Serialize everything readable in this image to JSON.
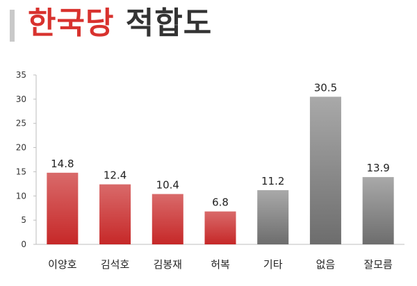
{
  "header": {
    "title_part1": "한국당",
    "title_part2": "적합도",
    "title_color1": "#d8322e",
    "title_color2": "#333333"
  },
  "chart_data": {
    "type": "bar",
    "categories": [
      "이양호",
      "김석호",
      "김봉재",
      "허복",
      "기타",
      "없음",
      "잘모름"
    ],
    "values": [
      14.8,
      12.4,
      10.4,
      6.8,
      11.2,
      30.5,
      13.9
    ],
    "value_labels": [
      "14.8",
      "12.4",
      "10.4",
      "6.8",
      "11.2",
      "30.5",
      "13.9"
    ],
    "bar_colors": [
      "red",
      "red",
      "red",
      "red",
      "gray",
      "gray",
      "gray"
    ],
    "ylim": [
      0,
      35
    ],
    "yticks": [
      0,
      5,
      10,
      15,
      20,
      25,
      30,
      35
    ],
    "grid": false,
    "colors": {
      "red_top": "#d96a6a",
      "red_bottom": "#c62828",
      "gray_top": "#a9a9a9",
      "gray_bottom": "#6d6d6d"
    }
  }
}
